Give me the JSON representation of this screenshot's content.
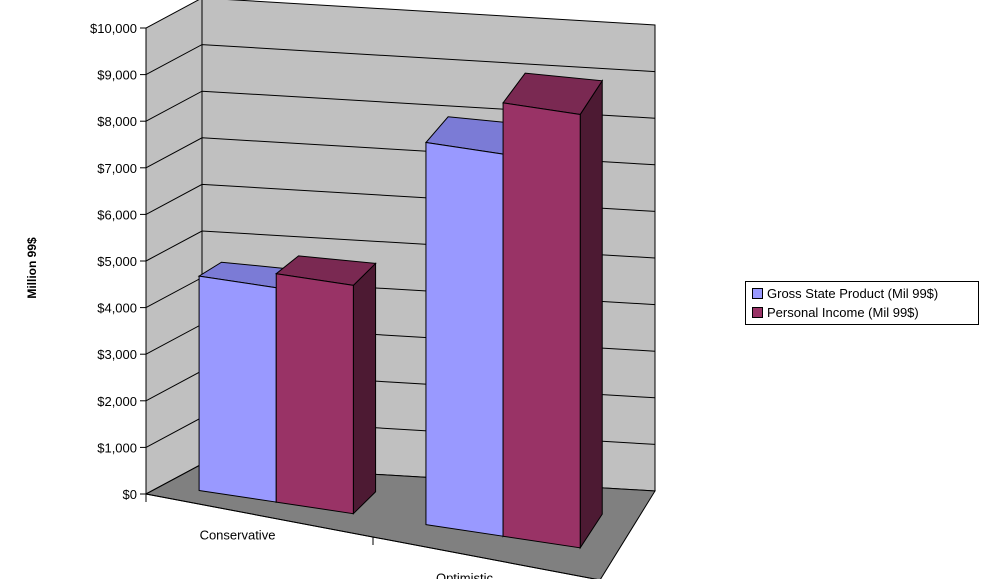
{
  "chart_data": {
    "type": "bar",
    "style": "3d-clustered-column",
    "categories": [
      "Conservative",
      "Optimistic"
    ],
    "series": [
      {
        "name": "Gross State Product (Mil 99$)",
        "values": [
          4600,
          8200
        ],
        "color": "#9999ff",
        "side_color": "#5e5ea0",
        "top_color": "#7b7bd6"
      },
      {
        "name": "Personal Income (Mil 99$)",
        "values": [
          4900,
          9300
        ],
        "color": "#993366",
        "side_color": "#4d1a33",
        "top_color": "#7a2952"
      }
    ],
    "ylabel": "Million 99$",
    "ylim": [
      0,
      10000
    ],
    "ytick_step": 1000,
    "ytick_labels": [
      "$0",
      "$1,000",
      "$2,000",
      "$3,000",
      "$4,000",
      "$5,000",
      "$6,000",
      "$7,000",
      "$8,000",
      "$9,000",
      "$10,000"
    ],
    "grid": true,
    "legend_position": "right",
    "wall_color": "#c0c0c0",
    "floor_color": "#808080"
  }
}
